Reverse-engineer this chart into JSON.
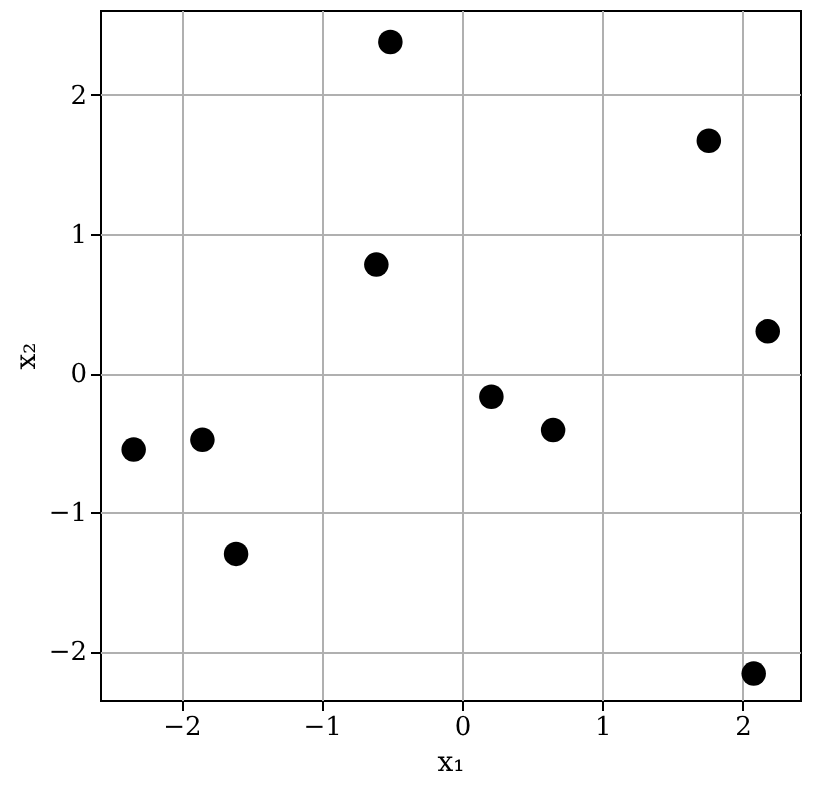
{
  "chart_data": {
    "type": "scatter",
    "xlabel": "x₁",
    "ylabel": "x₂",
    "x": [
      -2.34,
      -1.85,
      -1.61,
      -0.61,
      -0.51,
      0.21,
      0.65,
      1.76,
      2.18,
      2.08
    ],
    "series": [
      {
        "color": "#000000",
        "values": [
          -0.55,
          -0.48,
          -1.3,
          0.78,
          2.38,
          -0.17,
          -0.41,
          1.67,
          0.3,
          -2.16
        ]
      }
    ],
    "xlim": [
      -2.58,
      2.41
    ],
    "ylim": [
      -2.35,
      2.61
    ],
    "xticks": [
      {
        "value": -2,
        "label": "−2"
      },
      {
        "value": -1,
        "label": "−1"
      },
      0,
      1,
      2
    ],
    "yticks": [
      {
        "value": -2,
        "label": "−2"
      },
      {
        "value": -1,
        "label": "−1"
      },
      0,
      1,
      2
    ],
    "grid": true,
    "marker": "circle"
  }
}
